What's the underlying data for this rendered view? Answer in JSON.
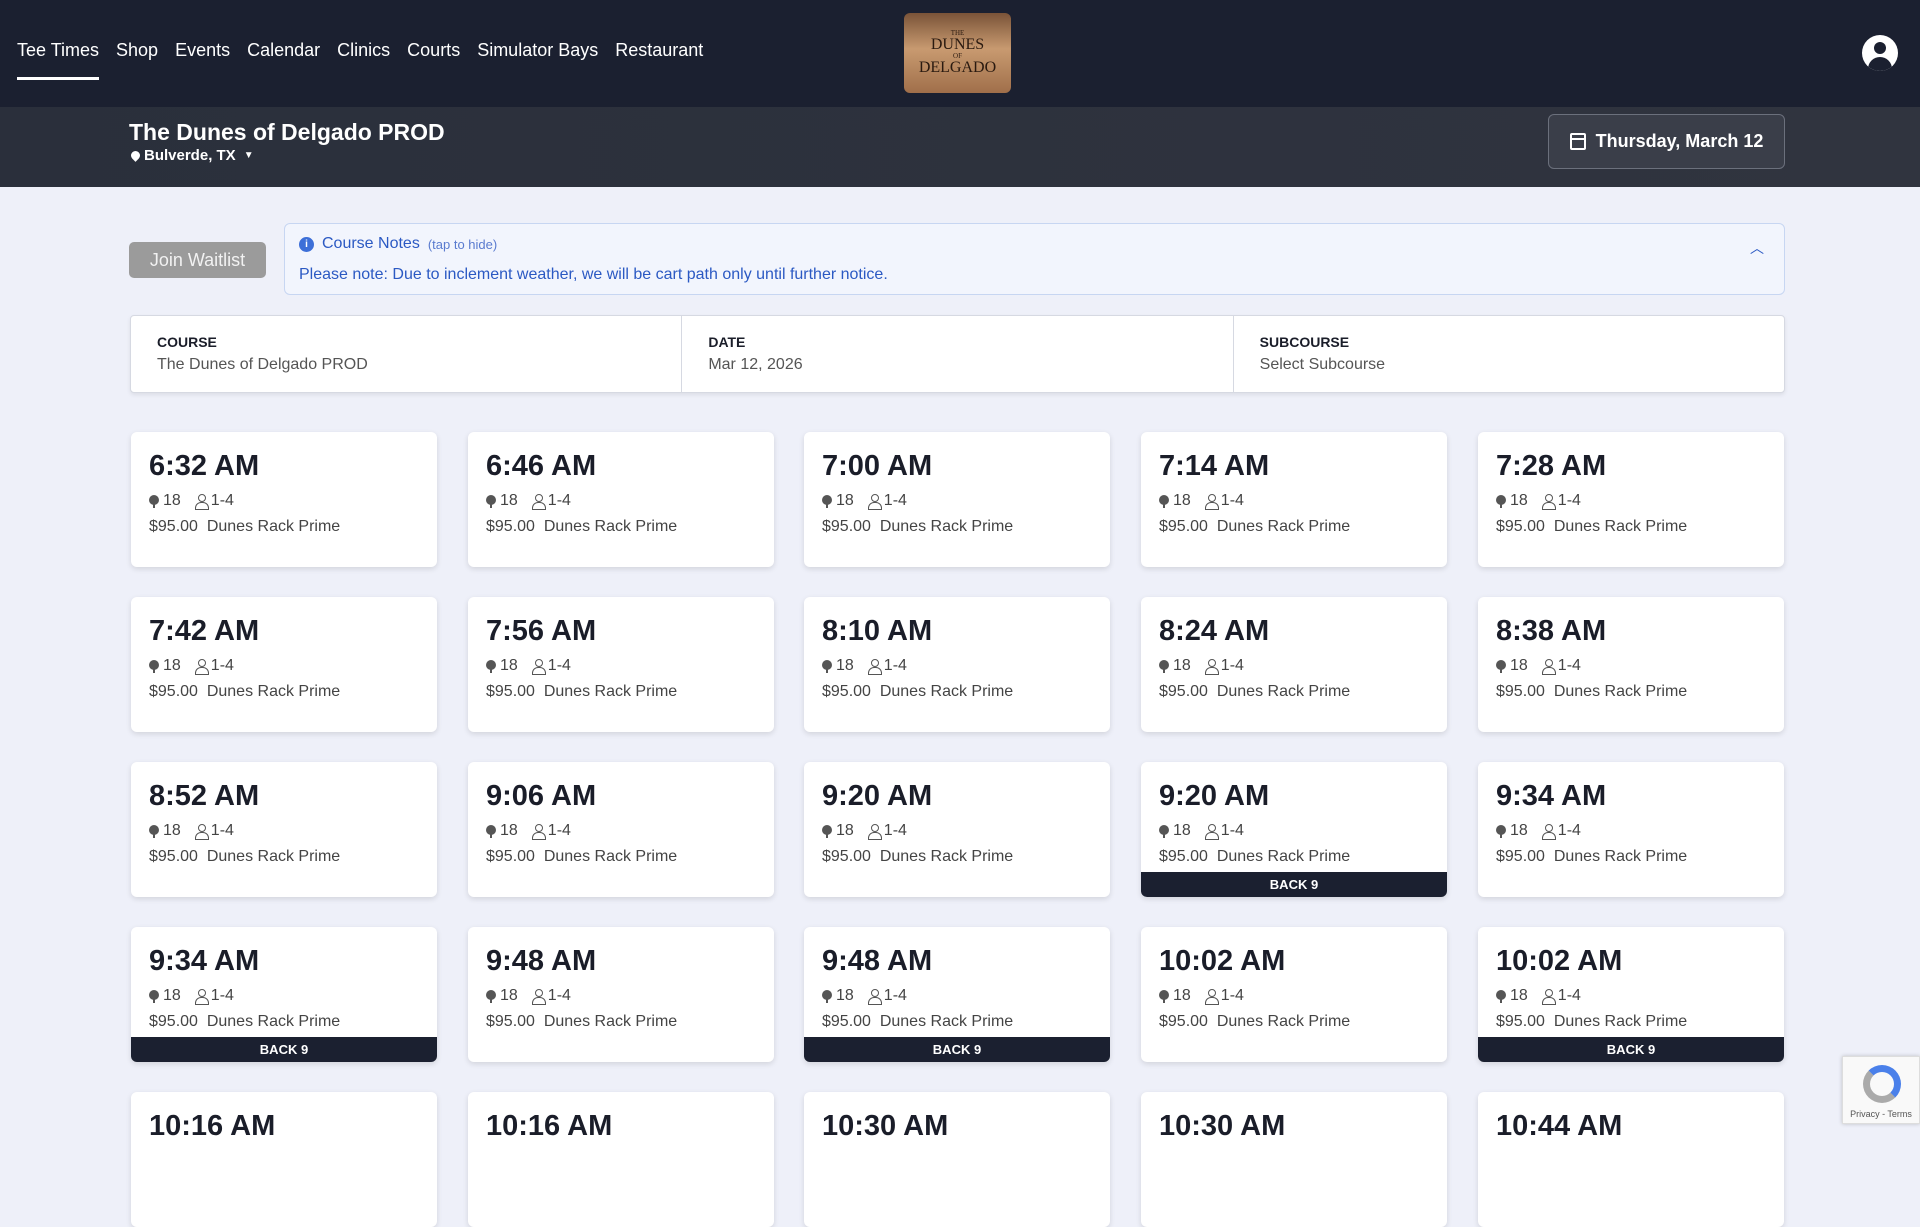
{
  "nav": {
    "items": [
      "Tee Times",
      "Shop",
      "Events",
      "Calendar",
      "Clinics",
      "Courts",
      "Simulator Bays",
      "Restaurant"
    ],
    "active": "Tee Times"
  },
  "logo": {
    "top": "THE",
    "line1": "DUNES",
    "of": "OF",
    "line2": "DELGADO"
  },
  "header": {
    "title": "The Dunes of Delgado PROD",
    "location": "Bulverde, TX",
    "date_button": "Thursday, March 12"
  },
  "waitlist_label": "Join Waitlist",
  "notes": {
    "title": "Course Notes",
    "hint": "(tap to hide)",
    "body": "Please note: Due to inclement weather, we will be cart path only until further notice."
  },
  "filters": [
    {
      "label": "COURSE",
      "value": "The Dunes of Delgado PROD"
    },
    {
      "label": "DATE",
      "value": "Mar 12, 2026"
    },
    {
      "label": "SUBCOURSE",
      "value": "Select Subcourse"
    }
  ],
  "tee_times": [
    {
      "time": "6:32 AM",
      "holes": "18",
      "players": "1-4",
      "price": "$95.00",
      "rate": "Dunes Rack Prime",
      "badge": ""
    },
    {
      "time": "6:46 AM",
      "holes": "18",
      "players": "1-4",
      "price": "$95.00",
      "rate": "Dunes Rack Prime",
      "badge": ""
    },
    {
      "time": "7:00 AM",
      "holes": "18",
      "players": "1-4",
      "price": "$95.00",
      "rate": "Dunes Rack Prime",
      "badge": ""
    },
    {
      "time": "7:14 AM",
      "holes": "18",
      "players": "1-4",
      "price": "$95.00",
      "rate": "Dunes Rack Prime",
      "badge": ""
    },
    {
      "time": "7:28 AM",
      "holes": "18",
      "players": "1-4",
      "price": "$95.00",
      "rate": "Dunes Rack Prime",
      "badge": ""
    },
    {
      "time": "7:42 AM",
      "holes": "18",
      "players": "1-4",
      "price": "$95.00",
      "rate": "Dunes Rack Prime",
      "badge": ""
    },
    {
      "time": "7:56 AM",
      "holes": "18",
      "players": "1-4",
      "price": "$95.00",
      "rate": "Dunes Rack Prime",
      "badge": ""
    },
    {
      "time": "8:10 AM",
      "holes": "18",
      "players": "1-4",
      "price": "$95.00",
      "rate": "Dunes Rack Prime",
      "badge": ""
    },
    {
      "time": "8:24 AM",
      "holes": "18",
      "players": "1-4",
      "price": "$95.00",
      "rate": "Dunes Rack Prime",
      "badge": ""
    },
    {
      "time": "8:38 AM",
      "holes": "18",
      "players": "1-4",
      "price": "$95.00",
      "rate": "Dunes Rack Prime",
      "badge": ""
    },
    {
      "time": "8:52 AM",
      "holes": "18",
      "players": "1-4",
      "price": "$95.00",
      "rate": "Dunes Rack Prime",
      "badge": ""
    },
    {
      "time": "9:06 AM",
      "holes": "18",
      "players": "1-4",
      "price": "$95.00",
      "rate": "Dunes Rack Prime",
      "badge": ""
    },
    {
      "time": "9:20 AM",
      "holes": "18",
      "players": "1-4",
      "price": "$95.00",
      "rate": "Dunes Rack Prime",
      "badge": ""
    },
    {
      "time": "9:20 AM",
      "holes": "18",
      "players": "1-4",
      "price": "$95.00",
      "rate": "Dunes Rack Prime",
      "badge": "BACK 9"
    },
    {
      "time": "9:34 AM",
      "holes": "18",
      "players": "1-4",
      "price": "$95.00",
      "rate": "Dunes Rack Prime",
      "badge": ""
    },
    {
      "time": "9:34 AM",
      "holes": "18",
      "players": "1-4",
      "price": "$95.00",
      "rate": "Dunes Rack Prime",
      "badge": "BACK 9"
    },
    {
      "time": "9:48 AM",
      "holes": "18",
      "players": "1-4",
      "price": "$95.00",
      "rate": "Dunes Rack Prime",
      "badge": ""
    },
    {
      "time": "9:48 AM",
      "holes": "18",
      "players": "1-4",
      "price": "$95.00",
      "rate": "Dunes Rack Prime",
      "badge": "BACK 9"
    },
    {
      "time": "10:02 AM",
      "holes": "18",
      "players": "1-4",
      "price": "$95.00",
      "rate": "Dunes Rack Prime",
      "badge": ""
    },
    {
      "time": "10:02 AM",
      "holes": "18",
      "players": "1-4",
      "price": "$95.00",
      "rate": "Dunes Rack Prime",
      "badge": "BACK 9"
    },
    {
      "time": "10:16 AM"
    },
    {
      "time": "10:16 AM"
    },
    {
      "time": "10:30 AM"
    },
    {
      "time": "10:30 AM"
    },
    {
      "time": "10:44 AM"
    }
  ],
  "recaptcha": {
    "text": "Privacy - Terms"
  }
}
